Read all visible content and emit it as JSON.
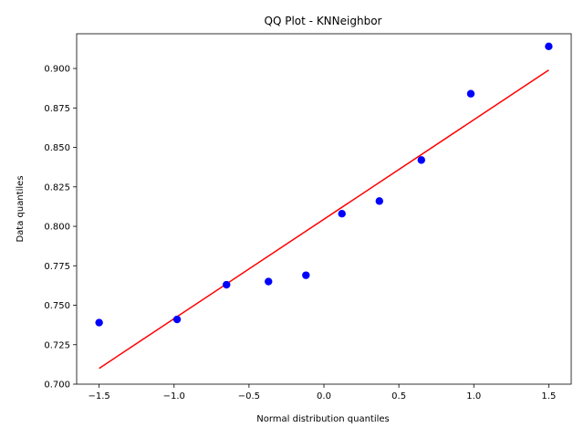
{
  "chart_data": {
    "type": "scatter",
    "title": "QQ Plot - KNNeighbor",
    "xlabel": "Normal distribution quantiles",
    "ylabel": "Data quantiles",
    "xlim": [
      -1.65,
      1.65
    ],
    "ylim": [
      0.7,
      0.922
    ],
    "grid": false,
    "x_ticks": [
      -1.5,
      -1.0,
      -0.5,
      0.0,
      0.5,
      1.0,
      1.5
    ],
    "x_tick_labels": [
      "−1.5",
      "−1.0",
      "−0.5",
      "0.0",
      "0.5",
      "1.0",
      "1.5"
    ],
    "y_ticks": [
      0.7,
      0.725,
      0.75,
      0.775,
      0.8,
      0.825,
      0.85,
      0.875,
      0.9
    ],
    "y_tick_labels": [
      "0.700",
      "0.725",
      "0.750",
      "0.775",
      "0.800",
      "0.825",
      "0.850",
      "0.875",
      "0.900"
    ],
    "points": {
      "color": "#0000ff",
      "x": [
        -1.5,
        -0.98,
        -0.65,
        -0.37,
        -0.12,
        0.12,
        0.37,
        0.65,
        0.98,
        1.5
      ],
      "y": [
        0.739,
        0.741,
        0.763,
        0.765,
        0.769,
        0.808,
        0.816,
        0.842,
        0.884,
        0.914
      ]
    },
    "fit_line": {
      "color": "#ff0000",
      "x": [
        -1.5,
        1.5
      ],
      "y": [
        0.71,
        0.899
      ]
    }
  }
}
